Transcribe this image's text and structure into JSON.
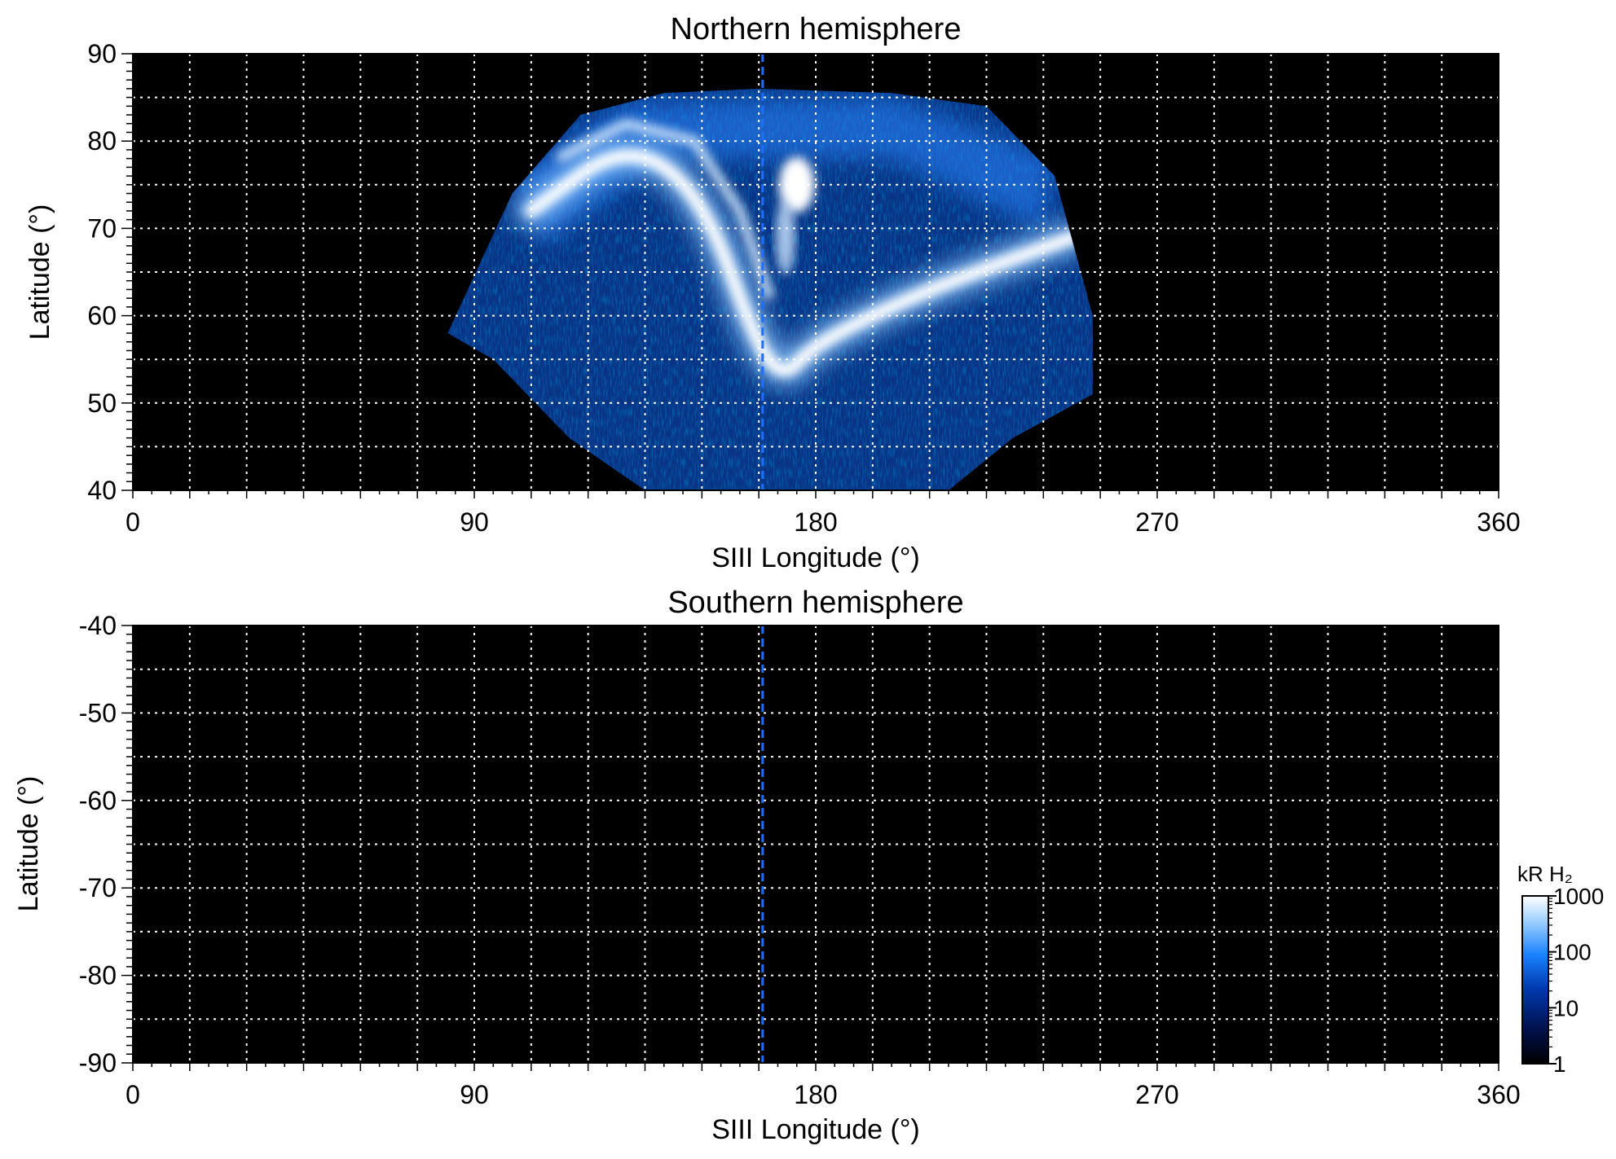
{
  "chart_data": [
    {
      "type": "heatmap",
      "title": "Northern hemisphere",
      "xlabel": "SIII Longitude (°)",
      "ylabel": "Latitude (°)",
      "xlim": [
        0,
        360
      ],
      "ylim": [
        40,
        90
      ],
      "xticks": [
        0,
        90,
        180,
        270,
        360
      ],
      "yticks": [
        40,
        50,
        60,
        70,
        80,
        90
      ],
      "grid": true,
      "grid_color": "#ffffff",
      "background": "#000000",
      "dashed_reference_longitude": 166,
      "emission_coverage": {
        "lon_range": [
          83,
          253
        ],
        "lat_range": [
          40,
          86
        ]
      },
      "main_oval": {
        "description_points_lon": [
          105,
          130,
          150,
          165,
          172,
          178,
          190,
          210,
          235,
          248
        ],
        "description_points_lat": [
          72,
          80,
          74,
          56,
          53,
          56,
          59,
          63,
          67,
          69
        ],
        "peak_brightness_kR": 1000
      },
      "polar_spot": {
        "lon": 175,
        "lat": 75,
        "brightness_kR": 800
      }
    },
    {
      "type": "heatmap",
      "title": "Southern hemisphere",
      "xlabel": "SIII Longitude (°)",
      "ylabel": "Latitude (°)",
      "xlim": [
        0,
        360
      ],
      "ylim": [
        -90,
        -40
      ],
      "xticks": [
        0,
        90,
        180,
        270,
        360
      ],
      "yticks": [
        -90,
        -80,
        -70,
        -60,
        -50,
        -40
      ],
      "grid": true,
      "grid_color": "#ffffff",
      "background": "#000000",
      "dashed_reference_longitude": 166,
      "emission_coverage": null
    }
  ],
  "colorbar": {
    "title": "kR H₂",
    "scale": "log",
    "range": [
      1,
      1000
    ],
    "ticks": [
      "1",
      "10",
      "100",
      "1000"
    ],
    "colors": [
      "#000000",
      "#00104a",
      "#003ab0",
      "#1a82ff",
      "#9fd0ff",
      "#ffffff"
    ]
  }
}
